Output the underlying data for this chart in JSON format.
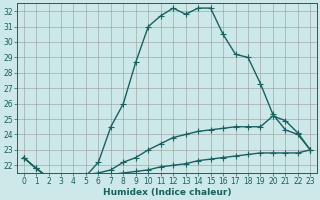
{
  "xlabel": "Humidex (Indice chaleur)",
  "bg_color": "#cce8e8",
  "line_color": "#1a6060",
  "xlim": [
    -0.5,
    23.5
  ],
  "ylim": [
    21.5,
    32.5
  ],
  "xticks": [
    0,
    1,
    2,
    3,
    4,
    5,
    6,
    7,
    8,
    9,
    10,
    11,
    12,
    13,
    14,
    15,
    16,
    17,
    18,
    19,
    20,
    21,
    22,
    23
  ],
  "yticks": [
    22,
    23,
    24,
    25,
    26,
    27,
    28,
    29,
    30,
    31,
    32
  ],
  "line1_x": [
    0,
    1,
    2,
    3,
    4,
    5,
    6,
    7,
    8,
    9,
    10,
    11,
    12,
    13,
    14,
    15,
    16,
    17,
    18,
    19,
    20,
    21,
    22,
    23
  ],
  "line1_y": [
    22.5,
    21.8,
    21.2,
    21.1,
    21.2,
    21.3,
    22.2,
    24.5,
    26.0,
    28.7,
    31.0,
    31.7,
    32.2,
    31.8,
    32.2,
    32.2,
    30.5,
    29.2,
    29.0,
    27.3,
    25.3,
    24.3,
    24.0,
    23.0
  ],
  "line2_x": [
    0,
    1,
    2,
    3,
    4,
    5,
    6,
    7,
    8,
    9,
    10,
    11,
    12,
    13,
    14,
    15,
    16,
    17,
    18,
    19,
    20,
    21,
    22,
    23
  ],
  "line2_y": [
    22.5,
    21.8,
    21.2,
    21.1,
    21.2,
    21.4,
    21.5,
    21.7,
    22.2,
    22.5,
    23.0,
    23.4,
    23.8,
    24.0,
    24.2,
    24.3,
    24.4,
    24.5,
    24.5,
    24.5,
    25.2,
    24.9,
    24.1,
    23.0
  ],
  "line3_x": [
    0,
    1,
    2,
    3,
    4,
    5,
    6,
    7,
    8,
    9,
    10,
    11,
    12,
    13,
    14,
    15,
    16,
    17,
    18,
    19,
    20,
    21,
    22,
    23
  ],
  "line3_y": [
    22.5,
    21.8,
    21.2,
    21.1,
    21.1,
    21.2,
    21.3,
    21.4,
    21.5,
    21.6,
    21.7,
    21.9,
    22.0,
    22.1,
    22.3,
    22.4,
    22.5,
    22.6,
    22.7,
    22.8,
    22.8,
    22.8,
    22.8,
    23.0
  ],
  "marker": "+",
  "markersize": 4,
  "linewidth": 1.0,
  "tick_fontsize": 5.5,
  "xlabel_fontsize": 6.5
}
